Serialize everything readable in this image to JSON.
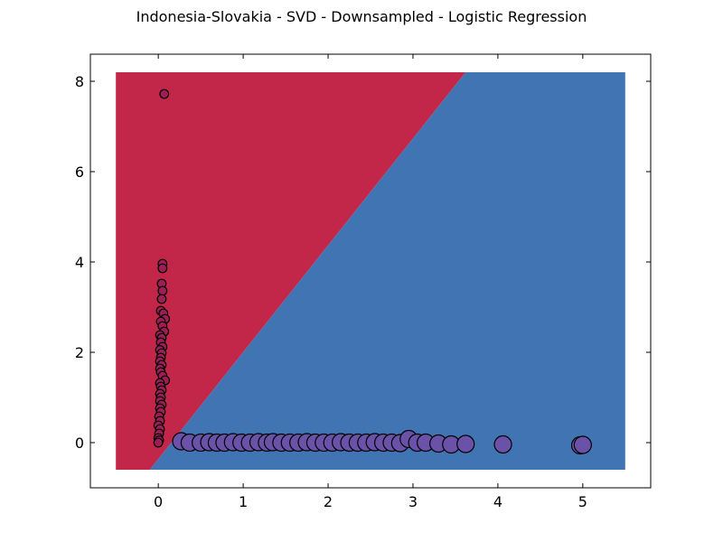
{
  "title": "Indonesia-Slovakia - SVD - Downsampled - Logistic Regression",
  "chart_data": {
    "type": "scatter",
    "title": "Indonesia-Slovakia - SVD - Downsampled - Logistic Regression",
    "xlabel": "",
    "ylabel": "",
    "xlim": [
      -0.8,
      5.8
    ],
    "ylim": [
      -1.0,
      8.6
    ],
    "xticks": [
      0,
      1,
      2,
      3,
      4,
      5
    ],
    "yticks": [
      0,
      2,
      4,
      6,
      8
    ],
    "grid": false,
    "decision_regions": {
      "extent": {
        "x": [
          -0.5,
          5.5
        ],
        "y": [
          -0.6,
          8.2
        ]
      },
      "boundary_points": [
        [
          -0.1,
          -0.6
        ],
        [
          3.62,
          8.2
        ]
      ],
      "left_color": "#c2274a",
      "right_color": "#4174b3"
    },
    "series": [
      {
        "color": "#9b1f54",
        "marker_size": "small",
        "points": [
          [
            0.07,
            7.72
          ],
          [
            0.05,
            3.96
          ],
          [
            0.05,
            3.86
          ],
          [
            0.04,
            3.52
          ],
          [
            0.05,
            3.36
          ],
          [
            0.04,
            3.18
          ],
          [
            0.03,
            2.92
          ],
          [
            0.06,
            2.86
          ],
          [
            0.08,
            2.74
          ],
          [
            0.03,
            2.68
          ],
          [
            0.05,
            2.58
          ],
          [
            0.07,
            2.46
          ],
          [
            0.02,
            2.38
          ],
          [
            0.04,
            2.32
          ],
          [
            0.03,
            2.22
          ],
          [
            0.05,
            2.12
          ],
          [
            0.02,
            2.05
          ],
          [
            0.04,
            1.98
          ],
          [
            0.03,
            1.88
          ],
          [
            0.02,
            1.8
          ],
          [
            0.04,
            1.72
          ],
          [
            0.02,
            1.64
          ],
          [
            0.03,
            1.56
          ],
          [
            0.05,
            1.48
          ],
          [
            0.08,
            1.38
          ],
          [
            0.02,
            1.32
          ],
          [
            0.03,
            1.24
          ],
          [
            0.04,
            1.16
          ],
          [
            0.02,
            1.08
          ],
          [
            0.03,
            1.0
          ],
          [
            0.02,
            0.92
          ],
          [
            0.04,
            0.84
          ],
          [
            0.02,
            0.76
          ],
          [
            0.03,
            0.68
          ],
          [
            0.01,
            0.58
          ],
          [
            0.02,
            0.48
          ],
          [
            0.0,
            0.38
          ],
          [
            0.02,
            0.3
          ],
          [
            0.01,
            0.2
          ],
          [
            0.0,
            0.1
          ],
          [
            0.01,
            0.05
          ],
          [
            0.0,
            0.0
          ]
        ]
      },
      {
        "color": "#6a52a8",
        "marker_size": "large",
        "points": [
          [
            0.27,
            0.03
          ],
          [
            0.37,
            0.0
          ],
          [
            0.5,
            0.0
          ],
          [
            0.6,
            0.01
          ],
          [
            0.69,
            0.0
          ],
          [
            0.78,
            0.0
          ],
          [
            0.88,
            0.01
          ],
          [
            0.98,
            0.0
          ],
          [
            1.08,
            0.0
          ],
          [
            1.18,
            0.01
          ],
          [
            1.28,
            0.0
          ],
          [
            1.35,
            0.01
          ],
          [
            1.45,
            0.0
          ],
          [
            1.55,
            0.0
          ],
          [
            1.65,
            0.0
          ],
          [
            1.75,
            0.01
          ],
          [
            1.85,
            0.0
          ],
          [
            1.95,
            0.0
          ],
          [
            2.05,
            0.0
          ],
          [
            2.15,
            0.01
          ],
          [
            2.25,
            0.0
          ],
          [
            2.35,
            0.0
          ],
          [
            2.45,
            0.0
          ],
          [
            2.55,
            0.01
          ],
          [
            2.65,
            0.0
          ],
          [
            2.75,
            0.0
          ],
          [
            2.85,
            -0.01
          ],
          [
            2.95,
            0.08
          ],
          [
            3.05,
            0.0
          ],
          [
            3.15,
            0.0
          ],
          [
            3.3,
            -0.02
          ],
          [
            3.45,
            -0.04
          ],
          [
            3.62,
            -0.03
          ],
          [
            4.06,
            -0.04
          ],
          [
            4.97,
            -0.06
          ],
          [
            5.0,
            -0.05
          ]
        ]
      }
    ]
  }
}
